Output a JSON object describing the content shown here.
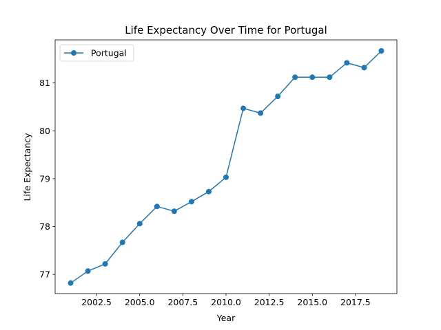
{
  "chart_data": {
    "type": "line",
    "title": "Life Expectancy Over Time for Portugal",
    "xlabel": "Year",
    "ylabel": "Life Expectancy",
    "xlim": [
      2000.1,
      2019.9
    ],
    "ylim": [
      76.6,
      81.9
    ],
    "xticks": [
      2002.5,
      2005.0,
      2007.5,
      2010.0,
      2012.5,
      2015.0,
      2017.5
    ],
    "xtick_labels": [
      "2002.5",
      "2005.0",
      "2007.5",
      "2010.0",
      "2012.5",
      "2015.0",
      "2017.5"
    ],
    "yticks": [
      77,
      78,
      79,
      80,
      81
    ],
    "ytick_labels": [
      "77",
      "78",
      "79",
      "80",
      "81"
    ],
    "legend_position": "top-left",
    "grid": false,
    "series": [
      {
        "name": "Portugal",
        "color": "#1f77b4",
        "marker": "circle",
        "x": [
          2001,
          2002,
          2003,
          2004,
          2005,
          2006,
          2007,
          2008,
          2009,
          2010,
          2011,
          2012,
          2013,
          2014,
          2015,
          2016,
          2017,
          2018,
          2019
        ],
        "y": [
          76.82,
          77.07,
          77.22,
          77.67,
          78.06,
          78.42,
          78.32,
          78.52,
          78.73,
          79.03,
          80.47,
          80.37,
          80.72,
          81.12,
          81.12,
          81.12,
          81.42,
          81.32,
          81.67
        ]
      }
    ]
  }
}
